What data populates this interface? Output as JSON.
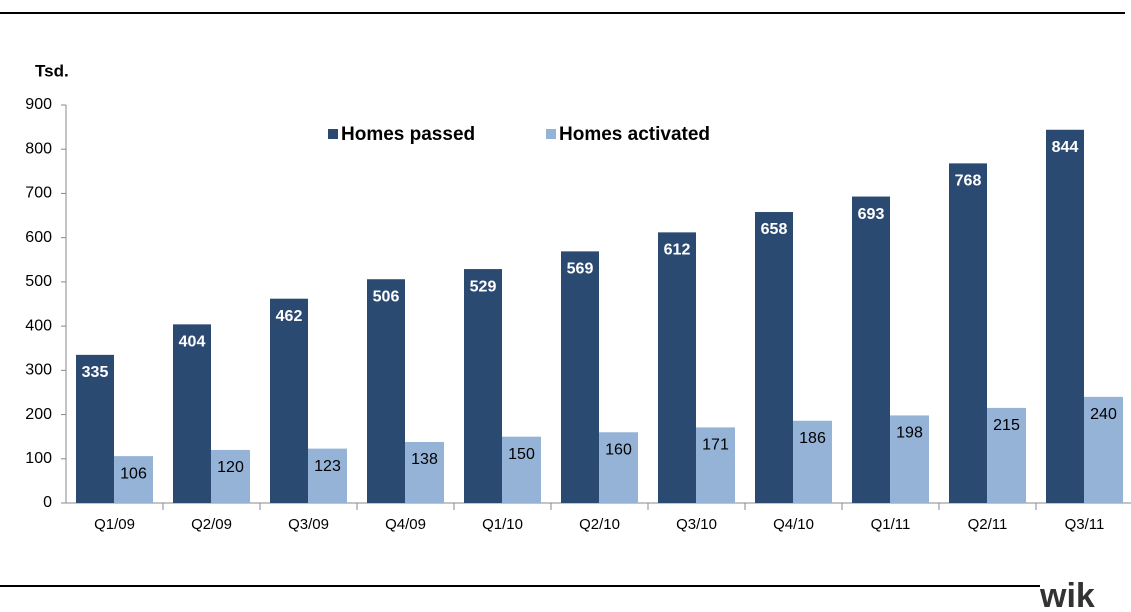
{
  "chart_data": {
    "type": "bar",
    "ylabel": "Tsd.",
    "categories": [
      "Q1/09",
      "Q2/09",
      "Q3/09",
      "Q4/09",
      "Q1/10",
      "Q2/10",
      "Q3/10",
      "Q4/10",
      "Q1/11",
      "Q2/11",
      "Q3/11"
    ],
    "series": [
      {
        "name": "Homes passed",
        "color": "#2b4a72",
        "values": [
          335,
          404,
          462,
          506,
          529,
          569,
          612,
          658,
          693,
          768,
          844
        ]
      },
      {
        "name": "Homes activated",
        "color": "#95b3d7",
        "values": [
          106,
          120,
          123,
          138,
          150,
          160,
          171,
          186,
          198,
          215,
          240
        ]
      }
    ],
    "ylim": [
      0,
      900
    ],
    "yticks": [
      0,
      100,
      200,
      300,
      400,
      500,
      600,
      700,
      800,
      900
    ],
    "grid": false
  },
  "logo": "wik"
}
